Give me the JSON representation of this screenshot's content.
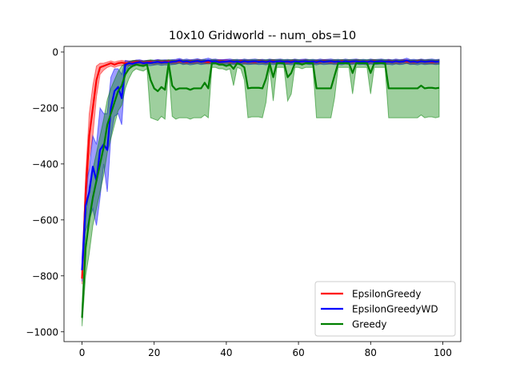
{
  "chart_data": {
    "type": "line",
    "title": "10x10 Gridworld -- num_obs=10",
    "xlabel": "",
    "ylabel": "",
    "xlim": [
      -5,
      105
    ],
    "ylim": [
      -1035,
      20
    ],
    "xticks": [
      0,
      20,
      40,
      60,
      80,
      100
    ],
    "yticks": [
      -1000,
      -800,
      -600,
      -400,
      -200,
      0
    ],
    "grid": false,
    "legend_position": "lower-right",
    "series": [
      {
        "name": "EpsilonGreedy",
        "color": "#ff0000",
        "x": [
          0,
          1,
          2,
          3,
          4,
          5,
          6,
          7,
          8,
          9,
          10,
          11,
          12,
          13,
          14,
          15,
          16,
          17,
          18,
          19,
          20,
          21,
          22,
          23,
          24,
          25,
          26,
          27,
          28,
          29,
          30,
          31,
          32,
          33,
          34,
          35,
          36,
          37,
          38,
          39,
          40,
          41,
          42,
          43,
          44,
          45,
          46,
          47,
          48,
          49,
          50,
          51,
          52,
          53,
          54,
          55,
          56,
          57,
          58,
          59,
          60,
          61,
          62,
          63,
          64,
          65,
          66,
          67,
          68,
          69,
          70,
          71,
          72,
          73,
          74,
          75,
          76,
          77,
          78,
          79,
          80,
          81,
          82,
          83,
          84,
          85,
          86,
          87,
          88,
          89,
          90,
          91,
          92,
          93,
          94,
          95,
          96,
          97,
          98,
          99
        ],
        "y": [
          -810,
          -500,
          -300,
          -200,
          -100,
          -55,
          -50,
          -45,
          -40,
          -45,
          -40,
          -38,
          -40,
          -40,
          -38,
          -35,
          -35,
          -38,
          -36,
          -35,
          -37,
          -34,
          -36,
          -35,
          -34,
          -36,
          -35,
          -33,
          -35,
          -36,
          -34,
          -35,
          -33,
          -34,
          -35,
          -36,
          -34,
          -35,
          -33,
          -34,
          -33,
          -35,
          -34,
          -36,
          -33,
          -35,
          -34,
          -35,
          -36,
          -33,
          -34,
          -35,
          -34,
          -33,
          -35,
          -34,
          -36,
          -35,
          -34,
          -33,
          -35,
          -34,
          -33,
          -35,
          -36,
          -34,
          -35,
          -33,
          -34,
          -35,
          -34,
          -36,
          -33,
          -35,
          -34,
          -35,
          -33,
          -34,
          -36,
          -35,
          -34,
          -33,
          -35,
          -34,
          -36,
          -33,
          -35,
          -34,
          -35,
          -33,
          -34,
          -35,
          -36,
          -34,
          -33,
          -35,
          -34,
          -36,
          -35,
          -34
        ],
        "lower": [
          -830,
          -560,
          -380,
          -300,
          -160,
          -80,
          -65,
          -55,
          -50,
          -55,
          -50,
          -48,
          -50,
          -48,
          -45,
          -42,
          -42,
          -45,
          -43,
          -42,
          -44,
          -41,
          -43,
          -42,
          -41,
          -43,
          -42,
          -40,
          -42,
          -43,
          -41,
          -42,
          -40,
          -41,
          -42,
          -43,
          -41,
          -42,
          -40,
          -41,
          -40,
          -42,
          -41,
          -43,
          -40,
          -42,
          -41,
          -42,
          -43,
          -40,
          -41,
          -42,
          -41,
          -40,
          -42,
          -41,
          -43,
          -42,
          -41,
          -40,
          -42,
          -41,
          -40,
          -42,
          -43,
          -41,
          -42,
          -40,
          -41,
          -42,
          -41,
          -43,
          -40,
          -42,
          -41,
          -42,
          -40,
          -41,
          -43,
          -42,
          -41,
          -40,
          -42,
          -41,
          -43,
          -40,
          -42,
          -41,
          -42,
          -40,
          -41,
          -42,
          -43,
          -41,
          -40,
          -42,
          -41,
          -43,
          -42,
          -41
        ],
        "upper": [
          -790,
          -440,
          -220,
          -120,
          -50,
          -40,
          -40,
          -36,
          -32,
          -36,
          -32,
          -30,
          -32,
          -32,
          -31,
          -29,
          -29,
          -31,
          -30,
          -29,
          -30,
          -28,
          -29,
          -29,
          -28,
          -30,
          -29,
          -27,
          -29,
          -30,
          -28,
          -29,
          -27,
          -28,
          -29,
          -30,
          -28,
          -29,
          -27,
          -28,
          -27,
          -29,
          -28,
          -30,
          -27,
          -29,
          -28,
          -29,
          -30,
          -27,
          -28,
          -29,
          -28,
          -27,
          -29,
          -28,
          -30,
          -29,
          -28,
          -27,
          -29,
          -28,
          -27,
          -29,
          -30,
          -28,
          -29,
          -27,
          -28,
          -29,
          -28,
          -30,
          -27,
          -29,
          -28,
          -29,
          -27,
          -28,
          -30,
          -29,
          -28,
          -27,
          -29,
          -28,
          -30,
          -27,
          -29,
          -28,
          -29,
          -27,
          -28,
          -29,
          -30,
          -28,
          -27,
          -29,
          -28,
          -30,
          -29,
          -28
        ]
      },
      {
        "name": "EpsilonGreedyWD",
        "color": "#0000ff",
        "x": [
          0,
          1,
          2,
          3,
          4,
          5,
          6,
          7,
          8,
          9,
          10,
          11,
          12,
          13,
          14,
          15,
          16,
          17,
          18,
          19,
          20,
          21,
          22,
          23,
          24,
          25,
          26,
          27,
          28,
          29,
          30,
          31,
          32,
          33,
          34,
          35,
          36,
          37,
          38,
          39,
          40,
          41,
          42,
          43,
          44,
          45,
          46,
          47,
          48,
          49,
          50,
          51,
          52,
          53,
          54,
          55,
          56,
          57,
          58,
          59,
          60,
          61,
          62,
          63,
          64,
          65,
          66,
          67,
          68,
          69,
          70,
          71,
          72,
          73,
          74,
          75,
          76,
          77,
          78,
          79,
          80,
          81,
          82,
          83,
          84,
          85,
          86,
          87,
          88,
          89,
          90,
          91,
          92,
          93,
          94,
          95,
          96,
          97,
          98,
          99
        ],
        "y": [
          -780,
          -550,
          -500,
          -410,
          -460,
          -350,
          -330,
          -350,
          -200,
          -140,
          -125,
          -165,
          -45,
          -40,
          -42,
          -38,
          -36,
          -40,
          -38,
          -39,
          -37,
          -35,
          -38,
          -36,
          -37,
          -35,
          -34,
          -30,
          -35,
          -33,
          -36,
          -34,
          -32,
          -35,
          -33,
          -30,
          -34,
          -33,
          -36,
          -35,
          -34,
          -33,
          -35,
          -34,
          -36,
          -33,
          -35,
          -34,
          -33,
          -35,
          -34,
          -36,
          -33,
          -35,
          -34,
          -33,
          -35,
          -34,
          -36,
          -33,
          -35,
          -34,
          -33,
          -35,
          -34,
          -36,
          -33,
          -35,
          -34,
          -33,
          -35,
          -34,
          -36,
          -33,
          -35,
          -34,
          -33,
          -35,
          -34,
          -36,
          -33,
          -35,
          -34,
          -33,
          -35,
          -34,
          -36,
          -33,
          -35,
          -34,
          -30,
          -35,
          -34,
          -36,
          -33,
          -35,
          -34,
          -33,
          -35,
          -34
        ],
        "lower": [
          -820,
          -640,
          -600,
          -560,
          -620,
          -520,
          -400,
          -500,
          -300,
          -230,
          -220,
          -260,
          -70,
          -50,
          -52,
          -48,
          -46,
          -50,
          -48,
          -49,
          -47,
          -45,
          -48,
          -46,
          -47,
          -45,
          -44,
          -40,
          -45,
          -43,
          -46,
          -44,
          -42,
          -45,
          -43,
          -40,
          -44,
          -43,
          -46,
          -45,
          -44,
          -43,
          -45,
          -44,
          -46,
          -43,
          -45,
          -44,
          -43,
          -45,
          -44,
          -46,
          -43,
          -45,
          -44,
          -43,
          -45,
          -44,
          -46,
          -43,
          -45,
          -44,
          -43,
          -45,
          -44,
          -46,
          -43,
          -45,
          -44,
          -43,
          -45,
          -44,
          -46,
          -43,
          -45,
          -44,
          -43,
          -45,
          -44,
          -46,
          -43,
          -45,
          -44,
          -43,
          -45,
          -44,
          -46,
          -43,
          -45,
          -44,
          -40,
          -45,
          -44,
          -46,
          -43,
          -45,
          -44,
          -43,
          -45,
          -44
        ],
        "upper": [
          -740,
          -470,
          -420,
          -300,
          -330,
          -200,
          -220,
          -220,
          -90,
          -60,
          -60,
          -80,
          -30,
          -32,
          -33,
          -29,
          -28,
          -31,
          -30,
          -30,
          -29,
          -27,
          -29,
          -28,
          -29,
          -27,
          -26,
          -23,
          -27,
          -25,
          -28,
          -26,
          -24,
          -27,
          -25,
          -22,
          -26,
          -25,
          -28,
          -27,
          -26,
          -25,
          -27,
          -26,
          -28,
          -25,
          -27,
          -26,
          -25,
          -27,
          -26,
          -28,
          -25,
          -27,
          -26,
          -25,
          -27,
          -26,
          -28,
          -25,
          -27,
          -26,
          -25,
          -27,
          -26,
          -28,
          -25,
          -27,
          -26,
          -25,
          -27,
          -26,
          -28,
          -25,
          -27,
          -26,
          -25,
          -27,
          -26,
          -28,
          -25,
          -27,
          -26,
          -25,
          -27,
          -26,
          -28,
          -25,
          -27,
          -26,
          -22,
          -27,
          -26,
          -28,
          -25,
          -27,
          -26,
          -25,
          -27,
          -26
        ]
      },
      {
        "name": "Greedy",
        "color": "#008000",
        "x": [
          0,
          1,
          2,
          3,
          4,
          5,
          6,
          7,
          8,
          9,
          10,
          11,
          12,
          13,
          14,
          15,
          16,
          17,
          18,
          19,
          20,
          21,
          22,
          23,
          24,
          25,
          26,
          27,
          28,
          29,
          30,
          31,
          32,
          33,
          34,
          35,
          36,
          37,
          38,
          39,
          40,
          41,
          42,
          43,
          44,
          45,
          46,
          47,
          48,
          49,
          50,
          51,
          52,
          53,
          54,
          55,
          56,
          57,
          58,
          59,
          60,
          61,
          62,
          63,
          64,
          65,
          66,
          67,
          68,
          69,
          70,
          71,
          72,
          73,
          74,
          75,
          76,
          77,
          78,
          79,
          80,
          81,
          82,
          83,
          84,
          85,
          86,
          87,
          88,
          89,
          90,
          91,
          92,
          93,
          94,
          95,
          96,
          97,
          98,
          99
        ],
        "y": [
          -950,
          -700,
          -600,
          -520,
          -460,
          -400,
          -340,
          -260,
          -220,
          -180,
          -140,
          -120,
          -80,
          -60,
          -50,
          -45,
          -48,
          -50,
          -45,
          -100,
          -130,
          -140,
          -125,
          -135,
          -40,
          -120,
          -135,
          -130,
          -130,
          -130,
          -135,
          -130,
          -130,
          -130,
          -110,
          -130,
          -40,
          -40,
          -45,
          -45,
          -50,
          -45,
          -60,
          -40,
          -45,
          -55,
          -130,
          -128,
          -128,
          -128,
          -130,
          -95,
          -40,
          -90,
          -40,
          -40,
          -40,
          -90,
          -75,
          -40,
          -40,
          -45,
          -40,
          -40,
          -40,
          -130,
          -130,
          -130,
          -130,
          -130,
          -85,
          -40,
          -40,
          -40,
          -40,
          -75,
          -40,
          -40,
          -40,
          -40,
          -75,
          -40,
          -40,
          -40,
          -40,
          -130,
          -130,
          -130,
          -130,
          -130,
          -130,
          -130,
          -130,
          -130,
          -120,
          -130,
          -128,
          -128,
          -130,
          -128
        ],
        "lower": [
          -980,
          -800,
          -720,
          -620,
          -560,
          -500,
          -440,
          -360,
          -310,
          -260,
          -210,
          -190,
          -130,
          -95,
          -70,
          -60,
          -65,
          -68,
          -60,
          -235,
          -240,
          -245,
          -230,
          -240,
          -55,
          -230,
          -240,
          -235,
          -235,
          -235,
          -240,
          -235,
          -235,
          -235,
          -225,
          -235,
          -55,
          -55,
          -60,
          -60,
          -65,
          -60,
          -120,
          -55,
          -60,
          -100,
          -235,
          -232,
          -232,
          -232,
          -235,
          -180,
          -55,
          -175,
          -55,
          -55,
          -55,
          -175,
          -150,
          -55,
          -55,
          -60,
          -55,
          -55,
          -55,
          -235,
          -235,
          -235,
          -235,
          -235,
          -165,
          -55,
          -55,
          -55,
          -55,
          -150,
          -55,
          -55,
          -55,
          -55,
          -150,
          -55,
          -55,
          -55,
          -55,
          -235,
          -235,
          -235,
          -235,
          -235,
          -235,
          -235,
          -235,
          -235,
          -225,
          -235,
          -232,
          -232,
          -235,
          -232
        ],
        "upper": [
          -920,
          -600,
          -480,
          -420,
          -360,
          -300,
          -240,
          -170,
          -130,
          -100,
          -70,
          -50,
          -40,
          -35,
          -30,
          -30,
          -32,
          -33,
          -30,
          -28,
          -30,
          -30,
          -29,
          -30,
          -28,
          -29,
          -30,
          -29,
          -29,
          -29,
          -30,
          -29,
          -29,
          -29,
          -28,
          -29,
          -28,
          -28,
          -30,
          -30,
          -32,
          -30,
          -28,
          -28,
          -30,
          -28,
          -29,
          -28,
          -28,
          -28,
          -29,
          -28,
          -28,
          -28,
          -28,
          -28,
          -28,
          -28,
          -28,
          -28,
          -28,
          -30,
          -28,
          -28,
          -28,
          -29,
          -29,
          -29,
          -29,
          -29,
          -28,
          -28,
          -28,
          -28,
          -28,
          -28,
          -28,
          -28,
          -28,
          -28,
          -28,
          -28,
          -28,
          -28,
          -28,
          -29,
          -29,
          -29,
          -29,
          -29,
          -29,
          -29,
          -29,
          -29,
          -28,
          -29,
          -28,
          -28,
          -29,
          -28
        ]
      }
    ]
  }
}
